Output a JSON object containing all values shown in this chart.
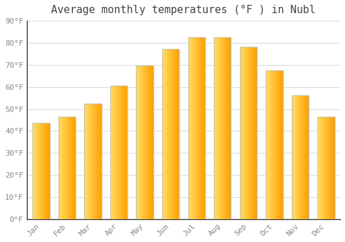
{
  "title": "Average monthly temperatures (°F ) in Nubl",
  "months": [
    "Jan",
    "Feb",
    "Mar",
    "Apr",
    "May",
    "Jun",
    "Jul",
    "Aug",
    "Sep",
    "Oct",
    "Nov",
    "Dec"
  ],
  "values": [
    43.5,
    46.5,
    52.5,
    60.5,
    69.5,
    77.0,
    82.5,
    82.5,
    78.0,
    67.5,
    56.0,
    46.5
  ],
  "bar_color_left": "#FFD966",
  "bar_color_right": "#FFA500",
  "bar_color_mid": "#FFB830",
  "background_color": "#FFFFFF",
  "grid_color": "#DDDDDD",
  "ylim": [
    0,
    90
  ],
  "yticks": [
    0,
    10,
    20,
    30,
    40,
    50,
    60,
    70,
    80,
    90
  ],
  "title_fontsize": 11,
  "tick_fontsize": 8,
  "tick_color": "#888888",
  "spine_color": "#333333"
}
